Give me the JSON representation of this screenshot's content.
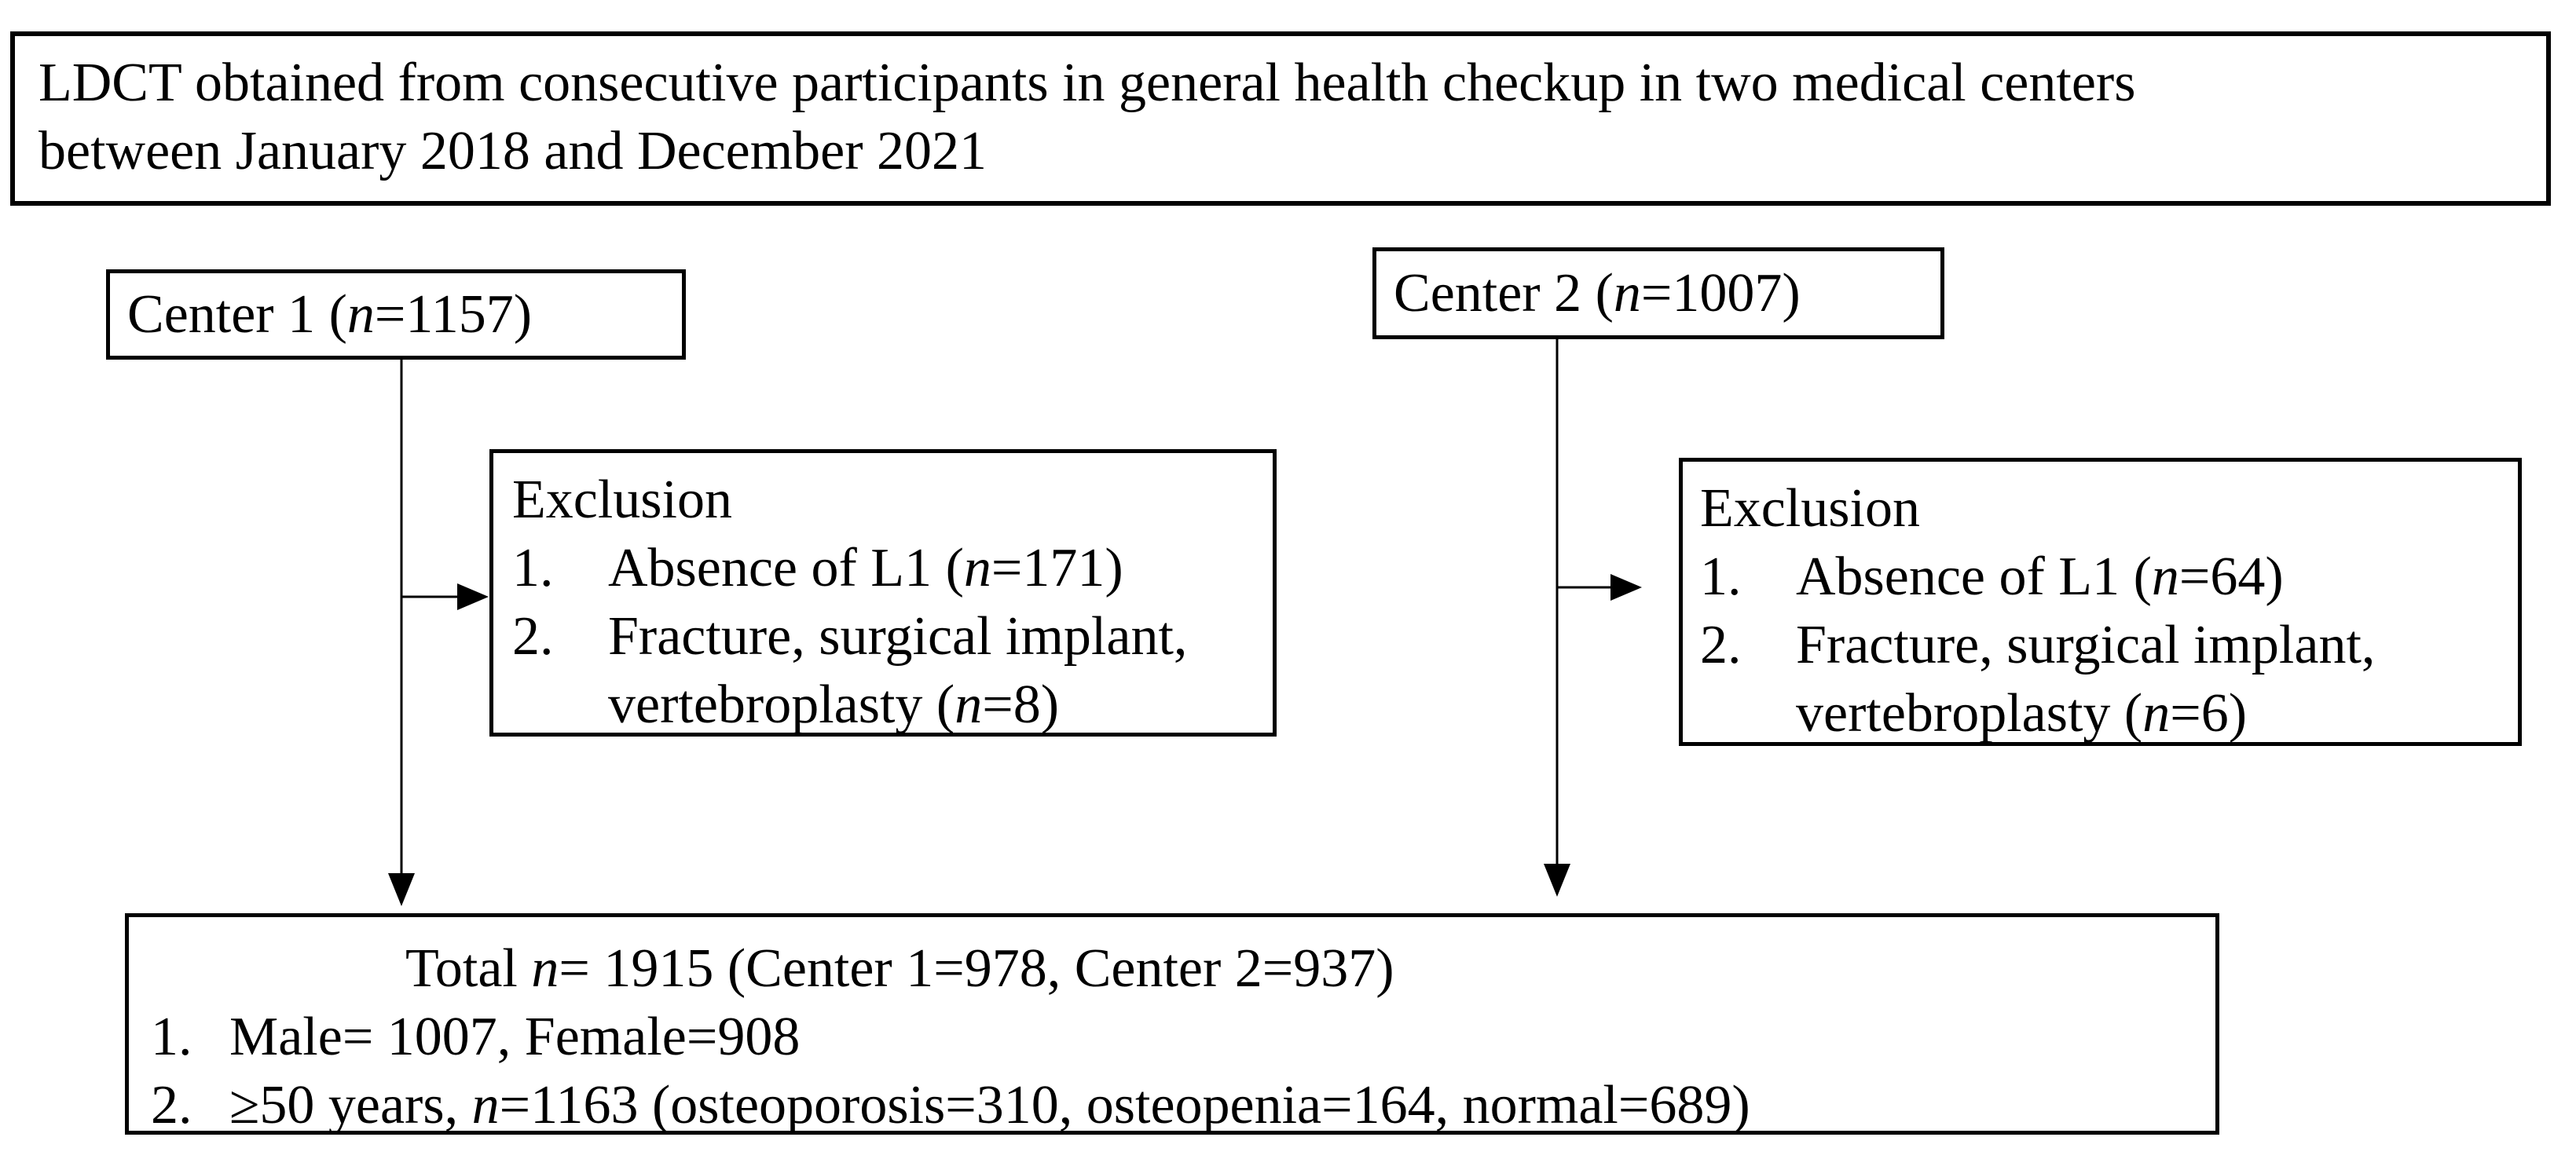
{
  "figure": {
    "background_color": "#ffffff",
    "line_color": "#000000"
  },
  "top_box": {
    "line1": "LDCT obtained from consecutive participants in general health checkup in two medical centers",
    "line2": "between January 2018 and December 2021"
  },
  "center1_box": {
    "segments": [
      {
        "t": "Center 1 ("
      },
      {
        "t": "n",
        "i": true
      },
      {
        "t": "=1157)"
      }
    ]
  },
  "center2_box": {
    "segments": [
      {
        "t": "Center 2 ("
      },
      {
        "t": "n",
        "i": true
      },
      {
        "t": "=1007)"
      }
    ]
  },
  "exclusion1_box": {
    "title": "Exclusion",
    "items": [
      {
        "num": "1.",
        "segments": [
          {
            "t": "Absence of L1 ("
          },
          {
            "t": "n",
            "i": true
          },
          {
            "t": "=171)"
          }
        ]
      },
      {
        "num": "2.",
        "segments": [
          {
            "t": "Fracture, surgical implant, vertebroplasty ("
          },
          {
            "t": "n",
            "i": true
          },
          {
            "t": "=8)"
          }
        ]
      }
    ]
  },
  "exclusion2_box": {
    "title": "Exclusion",
    "items": [
      {
        "num": "1.",
        "segments": [
          {
            "t": "Absence of L1 ("
          },
          {
            "t": "n",
            "i": true
          },
          {
            "t": "=64)"
          }
        ]
      },
      {
        "num": "2.",
        "segments": [
          {
            "t": "Fracture, surgical implant, vertebroplasty ("
          },
          {
            "t": "n",
            "i": true
          },
          {
            "t": "=6)"
          }
        ]
      }
    ]
  },
  "total_box": {
    "headline": [
      {
        "t": "Total "
      },
      {
        "t": "n",
        "i": true
      },
      {
        "t": "= 1915 (Center 1=978, Center 2=937)"
      }
    ],
    "items": [
      {
        "num": "1.",
        "segments": [
          {
            "t": "Male= 1007, Female=908"
          }
        ]
      },
      {
        "num": "2.",
        "segments": [
          {
            "t": "≥50 years, "
          },
          {
            "t": "n",
            "i": true
          },
          {
            "t": "=1163 (osteoporosis=310, osteopenia=164, normal=689)"
          }
        ]
      }
    ]
  }
}
